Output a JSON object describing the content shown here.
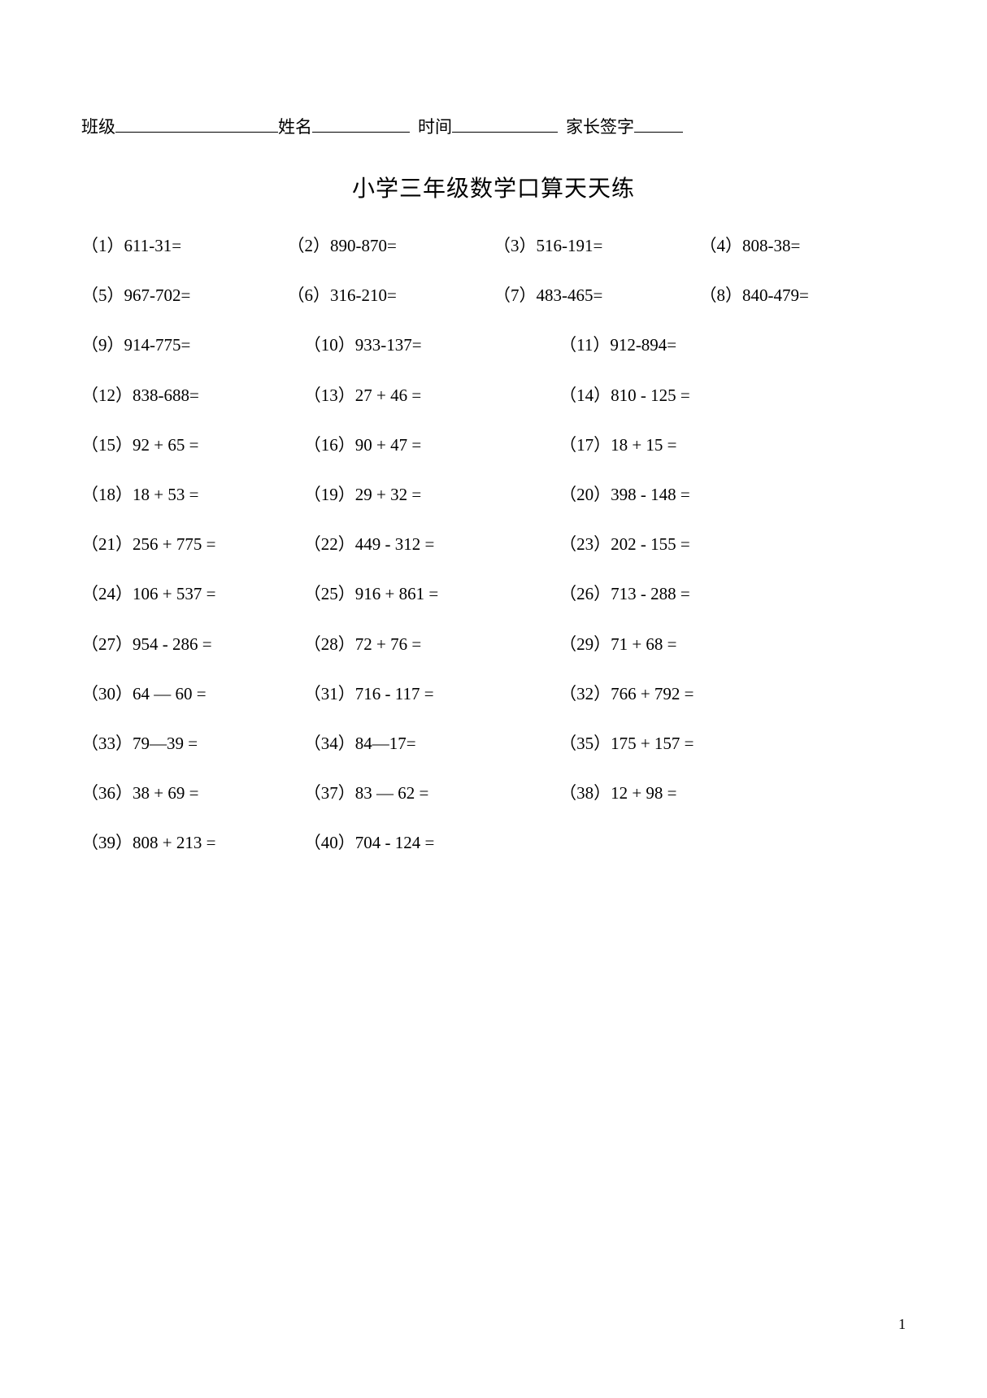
{
  "header": {
    "class_label": "班级",
    "name_label": "姓名",
    "time_label": "时间",
    "sign_label": "家长签字"
  },
  "title": "小学三年级数学口算天天练",
  "page_number": "1",
  "rows": [
    {
      "cols": 4,
      "items": [
        "（1）611-31=",
        "（2）890-870=",
        "（3）516-191=",
        "（4）808-38="
      ]
    },
    {
      "cols": 4,
      "items": [
        "（5）967-702=",
        "（6）316-210=",
        "（7）483-465=",
        "（8）840-479="
      ]
    },
    {
      "cols": 3,
      "items": [
        "（9）914-775=",
        "（10）933-137=",
        "（11）912-894="
      ]
    },
    {
      "cols": 3,
      "items": [
        "（12）838-688=",
        "（13）27 + 46 =",
        "（14）810 - 125 ="
      ]
    },
    {
      "cols": 3,
      "items": [
        "（15）92 + 65 =",
        "（16）90 + 47 =",
        "（17）18 + 15 ="
      ]
    },
    {
      "cols": 3,
      "items": [
        "（18）18 + 53 =",
        "（19）29 + 32 =",
        "（20）398 - 148 ="
      ]
    },
    {
      "cols": 3,
      "items": [
        "（21）256 + 775 =",
        "（22）449 - 312 =",
        "（23）202  - 155 ="
      ]
    },
    {
      "cols": 3,
      "items": [
        "（24）106 + 537 =",
        "（25）916 + 861 =",
        "（26）713 - 288 ="
      ]
    },
    {
      "cols": 3,
      "items": [
        "（27）954 - 286 =",
        "（28）72 + 76 =",
        "（29）71 + 68 ="
      ]
    },
    {
      "cols": 3,
      "items": [
        "（30）64 — 60 =",
        "（31）716 - 117 =",
        "（32）766 + 792 ="
      ]
    },
    {
      "cols": 3,
      "items": [
        "（33）79—39 =",
        "（34）84—17=",
        "（35）175 + 157 ="
      ]
    },
    {
      "cols": 3,
      "items": [
        "（36）38 + 69 =",
        "（37）83 — 62 =",
        "（38）12 + 98 ="
      ]
    },
    {
      "cols": 2,
      "items": [
        "（39）808 + 213 =",
        "（40）704 - 124 ="
      ]
    }
  ]
}
